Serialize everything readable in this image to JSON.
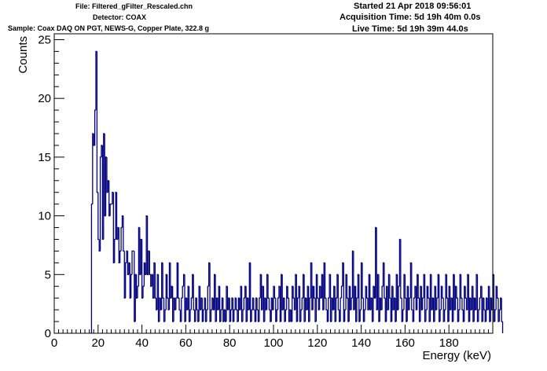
{
  "header": {
    "file": "File: Filtered_gFilter_Rescaled.chn",
    "detector": "Detector: COAX",
    "sample": "Sample: Coax DAQ ON PGT, NEWS-G, Copper Plate, 322.8 g",
    "started": "Started 21 Apr 2018 09:56:01",
    "acquisition": "Acquisition Time: 5d 19h 40m 0.0s",
    "live": "Live Time: 5d 19h 39m 44.0s"
  },
  "colors": {
    "series": "#00007f",
    "axis": "#000000"
  },
  "chart_data": {
    "type": "histogram",
    "xlabel": "Energy (keV)",
    "ylabel": "Counts",
    "xlim": [
      0,
      200
    ],
    "ylim": [
      0,
      25.5
    ],
    "x_ticks": [
      0,
      20,
      40,
      60,
      80,
      100,
      120,
      140,
      160,
      180
    ],
    "y_ticks": [
      0,
      5,
      10,
      15,
      20,
      25
    ],
    "bin_width": 0.5,
    "series": [
      {
        "x_start": 17.0,
        "values": [
          11,
          17,
          16,
          19,
          24,
          12,
          8,
          7,
          15,
          16,
          8,
          17,
          10,
          15,
          12,
          13,
          10,
          11,
          11,
          12,
          6,
          8,
          12,
          8,
          9,
          6,
          7,
          9,
          10,
          7,
          3,
          6,
          7,
          5,
          6,
          3,
          5,
          7,
          7,
          1,
          5,
          3,
          4,
          9,
          5,
          8,
          3,
          4,
          6,
          5,
          10,
          5,
          7,
          5,
          4,
          5,
          3,
          6,
          3,
          2,
          5,
          1,
          3,
          2,
          6,
          3,
          1,
          2,
          5,
          3,
          2,
          6,
          3,
          4,
          1,
          3,
          2,
          3,
          6,
          3,
          2,
          1,
          3,
          4,
          5,
          1,
          3,
          2,
          4,
          1,
          2,
          3,
          5,
          2,
          1,
          3,
          2,
          1,
          4,
          2,
          3,
          1,
          2,
          3,
          1,
          2,
          4,
          6,
          1,
          2,
          3,
          2,
          5,
          1,
          3,
          2,
          4,
          1,
          2,
          3,
          1,
          2,
          1,
          4,
          2,
          3,
          1,
          2,
          3,
          1,
          2,
          3,
          2,
          1,
          3,
          2,
          4,
          1,
          2,
          3,
          4,
          1,
          3,
          2,
          6,
          1,
          2,
          3,
          2,
          1,
          3,
          2,
          1,
          3,
          5,
          2,
          4,
          1,
          3,
          2,
          5,
          3,
          2,
          1,
          3,
          2,
          4,
          3,
          1,
          2,
          3,
          4,
          1,
          5,
          2,
          3,
          1,
          2,
          4,
          3,
          1,
          2,
          1,
          4,
          3,
          2,
          5,
          1,
          3,
          4,
          1,
          2,
          3,
          5,
          1,
          3,
          2,
          4,
          1,
          3,
          6,
          2,
          4,
          3,
          1,
          5,
          3,
          2,
          4,
          3,
          5,
          2,
          6,
          3,
          2,
          1,
          3,
          5,
          1,
          3,
          2,
          4,
          1,
          3,
          5,
          2,
          1,
          3,
          4,
          6,
          1,
          2,
          5,
          3,
          1,
          4,
          2,
          3,
          7,
          2,
          4,
          1,
          3,
          5,
          1,
          2,
          6,
          3,
          1,
          2,
          4,
          3,
          2,
          5,
          2,
          3,
          1,
          4,
          3,
          9,
          2,
          5,
          1,
          3,
          2,
          4,
          6,
          3,
          1,
          4,
          2,
          5,
          3,
          1,
          4,
          2,
          3,
          1,
          5,
          2,
          4,
          8,
          3,
          1,
          2,
          5,
          3,
          1,
          4,
          2,
          3,
          6,
          2,
          1,
          3,
          4,
          2,
          5,
          3,
          1,
          4,
          2,
          3,
          5,
          1,
          2,
          4,
          3,
          1,
          5,
          2,
          3,
          1,
          4,
          2,
          3,
          5,
          1,
          2,
          4,
          3,
          1,
          2,
          5,
          3,
          1,
          4,
          2,
          3,
          1,
          5,
          2,
          4,
          3,
          1,
          2,
          5,
          3,
          2,
          1,
          4,
          3,
          2,
          5,
          1,
          3,
          2,
          4,
          1,
          3,
          2,
          5,
          1,
          2,
          3,
          4,
          1,
          3,
          2,
          1,
          3,
          2,
          4,
          1,
          3,
          2,
          5,
          1,
          2,
          4,
          3,
          1,
          2,
          3,
          1
        ]
      }
    ]
  }
}
